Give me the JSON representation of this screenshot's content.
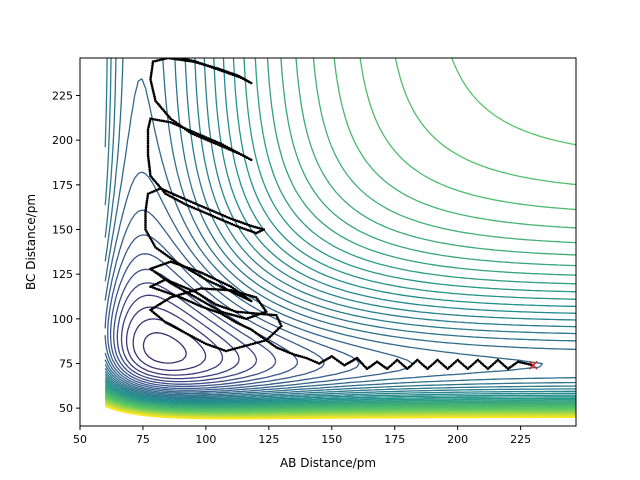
{
  "chart_data": {
    "type": "contour",
    "title": "",
    "xlabel": "AB Distance/pm",
    "ylabel": "BC Distance/pm",
    "xlim": [
      50,
      247
    ],
    "ylim": [
      40,
      246
    ],
    "xticks": [
      50,
      75,
      100,
      125,
      150,
      175,
      200,
      225
    ],
    "yticks": [
      50,
      75,
      100,
      125,
      150,
      175,
      200,
      225
    ],
    "grid": false,
    "colormap": [
      "#440154",
      "#3b528b",
      "#21918c",
      "#5ec962",
      "#fde725"
    ],
    "potential_surface": {
      "model": "LEPS-like Morse surface",
      "equilibrium_distance_pm": 74,
      "contour_levels": 48
    },
    "trajectory": {
      "name": "",
      "color": "#000000",
      "points": [
        [
          230,
          74
        ],
        [
          224,
          76
        ],
        [
          220,
          72
        ],
        [
          216,
          77
        ],
        [
          212,
          72
        ],
        [
          208,
          77
        ],
        [
          204,
          72
        ],
        [
          200,
          77
        ],
        [
          196,
          72
        ],
        [
          192,
          77
        ],
        [
          188,
          72
        ],
        [
          184,
          77
        ],
        [
          180,
          72
        ],
        [
          176,
          77
        ],
        [
          172,
          72
        ],
        [
          168,
          76
        ],
        [
          164,
          72
        ],
        [
          160,
          78
        ],
        [
          155,
          74
        ],
        [
          150,
          79
        ],
        [
          145,
          75
        ],
        [
          140,
          78
        ],
        [
          135,
          80
        ],
        [
          128,
          84
        ],
        [
          122,
          90
        ],
        [
          118,
          94
        ],
        [
          112,
          98
        ],
        [
          106,
          103
        ],
        [
          98,
          107
        ],
        [
          90,
          112
        ],
        [
          84,
          115
        ],
        [
          78,
          118
        ],
        [
          84,
          122
        ],
        [
          96,
          115
        ],
        [
          104,
          108
        ],
        [
          112,
          104
        ],
        [
          120,
          103
        ],
        [
          128,
          102
        ],
        [
          130,
          96
        ],
        [
          124,
          88
        ],
        [
          116,
          85
        ],
        [
          108,
          82
        ],
        [
          100,
          86
        ],
        [
          92,
          92
        ],
        [
          84,
          98
        ],
        [
          78,
          105
        ],
        [
          86,
          112
        ],
        [
          98,
          117
        ],
        [
          110,
          116
        ],
        [
          120,
          112
        ],
        [
          124,
          104
        ],
        [
          116,
          100
        ],
        [
          106,
          104
        ],
        [
          96,
          112
        ],
        [
          86,
          120
        ],
        [
          78,
          128
        ],
        [
          86,
          132
        ],
        [
          98,
          126
        ],
        [
          110,
          118
        ],
        [
          118,
          110
        ],
        [
          112,
          114
        ],
        [
          100,
          122
        ],
        [
          88,
          132
        ],
        [
          80,
          140
        ],
        [
          76,
          150
        ],
        [
          76,
          160
        ],
        [
          77,
          170
        ],
        [
          82,
          173
        ],
        [
          90,
          168
        ],
        [
          100,
          162
        ],
        [
          110,
          156
        ],
        [
          118,
          152
        ],
        [
          123,
          150
        ],
        [
          120,
          148
        ],
        [
          112,
          152
        ],
        [
          102,
          158
        ],
        [
          92,
          164
        ],
        [
          84,
          170
        ],
        [
          78,
          180
        ],
        [
          77,
          192
        ],
        [
          77,
          206
        ],
        [
          78,
          212
        ],
        [
          86,
          210
        ],
        [
          96,
          204
        ],
        [
          106,
          198
        ],
        [
          114,
          192
        ],
        [
          118,
          189
        ],
        [
          114,
          192
        ],
        [
          104,
          198
        ],
        [
          94,
          204
        ],
        [
          86,
          212
        ],
        [
          80,
          222
        ],
        [
          78,
          234
        ],
        [
          79,
          244
        ],
        [
          85,
          246
        ],
        [
          95,
          244
        ],
        [
          105,
          240
        ],
        [
          113,
          236
        ],
        [
          118,
          232
        ],
        [
          114,
          235
        ],
        [
          104,
          240
        ],
        [
          96,
          244
        ],
        [
          90,
          246
        ]
      ]
    },
    "markers": [
      {
        "name": "start",
        "x": 230,
        "y": 74,
        "symbol": "x",
        "color": "#e41a1c"
      }
    ]
  }
}
